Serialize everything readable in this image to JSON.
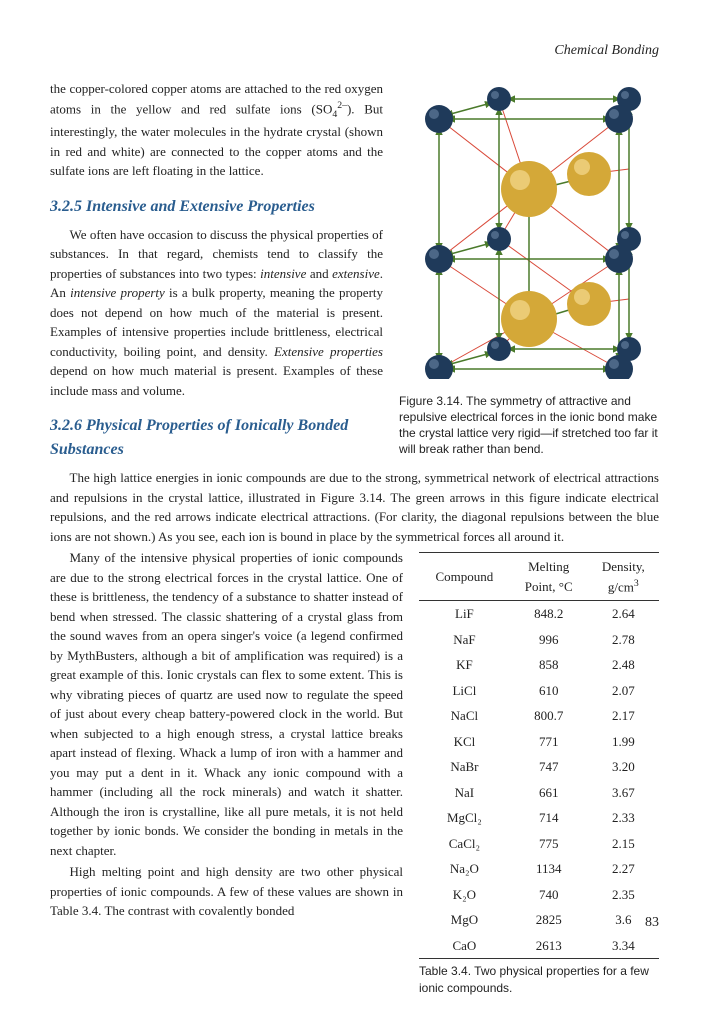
{
  "chapter_header": "Chemical Bonding",
  "intro_paragraph": "the copper-colored copper atoms are attached to the red oxygen atoms in the yellow and red sulfate ions (SO₄²⁻). But interestingly, the water molecules in the hydrate crystal (shown in red and white) are connected to the copper atoms and the sulfate ions are left floating in the lattice.",
  "heading_325": "3.2.5 Intensive and Extensive Properties",
  "para_325": "We often have occasion to discuss the physical properties of substances. In that regard, chemists tend to classify the properties of substances into two types: intensive and extensive. An intensive property is a bulk property, meaning the property does not depend on how much of the material is present. Examples of intensive properties include brittleness, electrical conductivity, boiling point, and density. Extensive properties depend on how much material is present. Examples of these include mass and volume.",
  "heading_326": "3.2.6 Physical Properties of Ionically Bonded Substances",
  "para_326_a": "The high lattice energies in ionic compounds are due to the strong, symmetrical network of electrical attractions and repulsions in the crystal lattice, illustrated in Figure 3.14. The green arrows in this figure indicate electrical repulsions, and the red arrows indicate electrical attractions. (For clarity, the diagonal repulsions between the blue ions are not shown.) As you see, each ion is bound in place by the symmetrical forces all around it.",
  "para_326_b": "Many of the intensive physical properties of ionic compounds are due to the strong electrical forces in the crystal lattice. One of these is brittleness, the tendency of a substance to shatter instead of bend when stressed. The classic shattering of a crystal glass from the sound waves from an opera singer's voice (a legend confirmed by MythBusters, although a bit of amplification was required) is a great example of this. Ionic crystals can flex to some extent. This is why vibrating pieces of quartz are used now to regulate the speed of just about every cheap battery-powered clock in the world. But when subjected to a high enough stress, a crystal lattice breaks apart instead of flexing. Whack a lump of iron with a hammer and you may put a dent in it. Whack any ionic compound with a hammer (including all the rock minerals) and watch it shatter. Although the iron is crystalline, like all pure metals, it is not held together by ionic bonds. We consider the bonding in metals in the next chapter.",
  "para_326_c": "High melting point and high density are two other physical properties of ionic compounds. A few of these values are shown in Table 3.4. The contrast with covalently bonded",
  "figure": {
    "caption": "Figure 3.14. The symmetry of attractive and repulsive electrical forces in the ionic bond make the crystal lattice very rigid—if stretched too far it will break rather than bend.",
    "colors": {
      "blue_sphere": "#1f3a5a",
      "gold_sphere": "#d4a838",
      "green_arrow": "#4a7a2a",
      "red_line": "#d94a3a"
    }
  },
  "table": {
    "caption": "Table 3.4. Two physical properties for a few ionic compounds.",
    "headers": [
      "Compound",
      "Melting Point, °C",
      "Density, g/cm³"
    ],
    "rows": [
      [
        "LiF",
        "848.2",
        "2.64"
      ],
      [
        "NaF",
        "996",
        "2.78"
      ],
      [
        "KF",
        "858",
        "2.48"
      ],
      [
        "LiCl",
        "610",
        "2.07"
      ],
      [
        "NaCl",
        "800.7",
        "2.17"
      ],
      [
        "KCl",
        "771",
        "1.99"
      ],
      [
        "NaBr",
        "747",
        "3.20"
      ],
      [
        "NaI",
        "661",
        "3.67"
      ],
      [
        "MgCl₂",
        "714",
        "2.33"
      ],
      [
        "CaCl₂",
        "775",
        "2.15"
      ],
      [
        "Na₂O",
        "1134",
        "2.27"
      ],
      [
        "K₂O",
        "740",
        "2.35"
      ],
      [
        "MgO",
        "2825",
        "3.6"
      ],
      [
        "CaO",
        "2613",
        "3.34"
      ]
    ]
  },
  "page_number": "83"
}
